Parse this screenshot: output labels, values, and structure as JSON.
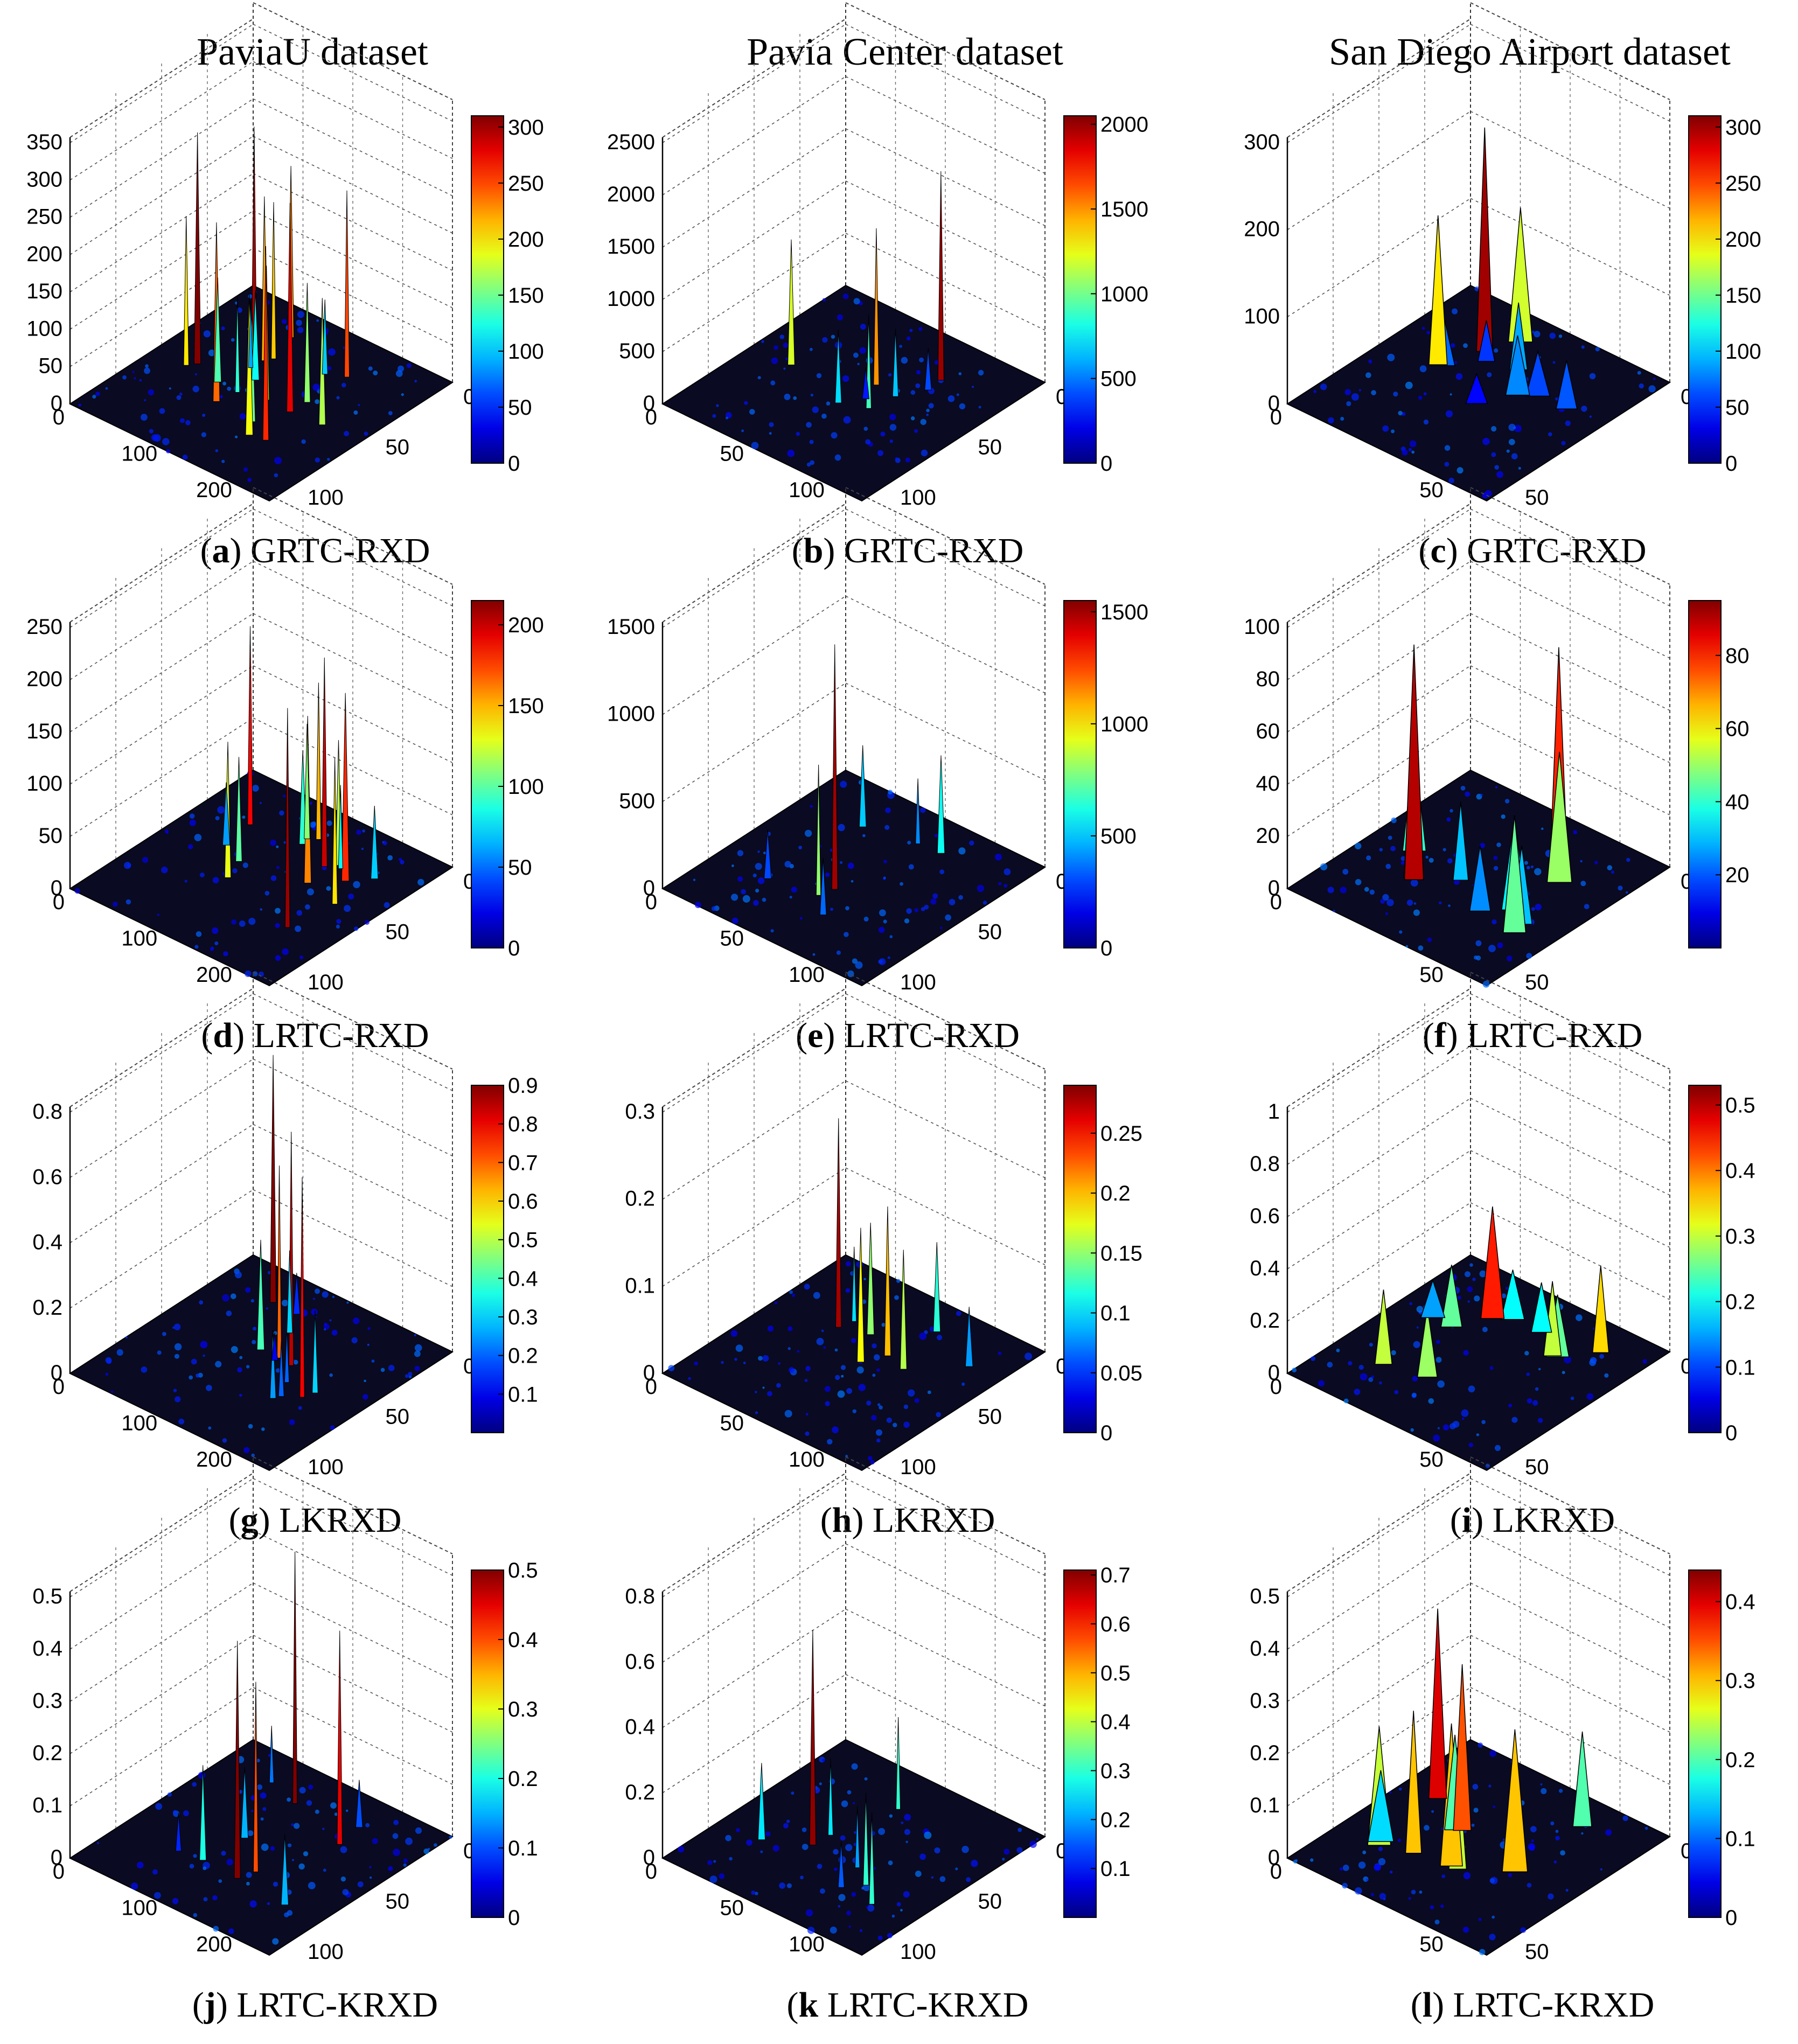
{
  "column_titles": [
    "PaviaU dataset",
    "Pavia Center dataset",
    "San Diego Airport dataset"
  ],
  "colors": {
    "background": "#ffffff",
    "floor": "#0a0a23",
    "grid": "#555555"
  },
  "chart_data": [
    {
      "type": "surface3d",
      "letter": "a",
      "method": "GRTC-RXD",
      "dataset": "PaviaU dataset",
      "z_ticks": [
        "0",
        "50",
        "100",
        "150",
        "200",
        "250",
        "300",
        "350"
      ],
      "x_ticks": [
        "0",
        "100",
        "200"
      ],
      "y_ticks": [
        "0",
        "50",
        "100"
      ],
      "colorbar_ticks": [
        "0",
        "50",
        "100",
        "150",
        "200",
        "250",
        "300"
      ],
      "zmax": 350,
      "cmax": 310,
      "peaks": [
        220,
        300,
        180,
        260,
        240,
        150,
        310,
        200,
        170,
        230,
        120,
        280,
        190,
        250,
        140,
        100,
        210,
        160,
        90,
        130
      ]
    },
    {
      "type": "surface3d",
      "letter": "b",
      "method": "GRTC-RXD",
      "dataset": "Pavia Center dataset",
      "z_ticks": [
        "0",
        "500",
        "1000",
        "1500",
        "2000",
        "2500"
      ],
      "x_ticks": [
        "0",
        "50",
        "100"
      ],
      "y_ticks": [
        "0",
        "50",
        "100"
      ],
      "colorbar_ticks": [
        "0",
        "500",
        "1000",
        "1500",
        "2000"
      ],
      "zmax": 2500,
      "cmax": 2050,
      "peaks": [
        400,
        2000,
        1500,
        700,
        1200,
        900,
        650,
        300
      ]
    },
    {
      "type": "surface3d",
      "letter": "c",
      "method": "GRTC-RXD",
      "dataset": "San Diego Airport dataset",
      "z_ticks": [
        "0",
        "100",
        "200",
        "300"
      ],
      "x_ticks": [
        "0",
        "50"
      ],
      "y_ticks": [
        "0",
        "50"
      ],
      "colorbar_ticks": [
        "0",
        "50",
        "100",
        "150",
        "200",
        "250",
        "300"
      ],
      "zmax": 350,
      "cmax": 310,
      "peaks": [
        300,
        180,
        90,
        70,
        60,
        80,
        55,
        200,
        40,
        65
      ]
    },
    {
      "type": "surface3d",
      "letter": "d",
      "method": "LRTC-RXD",
      "dataset": "PaviaU dataset",
      "z_ticks": [
        "0",
        "50",
        "100",
        "150",
        "200",
        "250"
      ],
      "x_ticks": [
        "0",
        "100",
        "200"
      ],
      "y_ticks": [
        "0",
        "50",
        "100"
      ],
      "colorbar_ticks": [
        "0",
        "50",
        "100",
        "150",
        "200"
      ],
      "zmax": 250,
      "cmax": 215,
      "peaks": [
        120,
        210,
        150,
        180,
        90,
        200,
        70,
        160,
        130,
        100,
        140,
        80,
        190,
        110,
        60
      ]
    },
    {
      "type": "surface3d",
      "letter": "e",
      "method": "LRTC-RXD",
      "dataset": "Pavia Center dataset",
      "z_ticks": [
        "0",
        "500",
        "1000",
        "1500"
      ],
      "x_ticks": [
        "0",
        "50",
        "100"
      ],
      "y_ticks": [
        "0",
        "50",
        "100"
      ],
      "colorbar_ticks": [
        "0",
        "500",
        "1000",
        "1500"
      ],
      "zmax": 1600,
      "cmax": 1550,
      "peaks": [
        500,
        1500,
        800,
        400,
        300,
        600,
        350
      ]
    },
    {
      "type": "surface3d",
      "letter": "f",
      "method": "LRTC-RXD",
      "dataset": "San Diego Airport dataset",
      "z_ticks": [
        "0",
        "20",
        "40",
        "60",
        "80",
        "100"
      ],
      "x_ticks": [
        "0",
        "50"
      ],
      "y_ticks": [
        "0",
        "50"
      ],
      "colorbar_ticks": [
        "20",
        "40",
        "60",
        "80"
      ],
      "zmax": 100,
      "cmax": 95,
      "peaks": [
        80,
        40,
        30,
        60,
        35,
        25,
        90,
        50,
        30,
        45
      ]
    },
    {
      "type": "surface3d",
      "letter": "g",
      "method": "LKRXD",
      "dataset": "PaviaU dataset",
      "z_ticks": [
        "0",
        "0.2",
        "0.4",
        "0.6",
        "0.8"
      ],
      "x_ticks": [
        "0",
        "100",
        "200"
      ],
      "y_ticks": [
        "0",
        "50",
        "100"
      ],
      "colorbar_ticks": [
        "0.1",
        "0.2",
        "0.3",
        "0.4",
        "0.5",
        "0.6",
        "0.7",
        "0.8",
        "0.9"
      ],
      "zmax": 0.95,
      "cmax": 0.9,
      "peaks": [
        0.9,
        0.85,
        0.4,
        0.3,
        0.7,
        0.2,
        0.8,
        0.3,
        0.25,
        0.15,
        0.1,
        0.2
      ]
    },
    {
      "type": "surface3d",
      "letter": "h",
      "method": "LKRXD",
      "dataset": "Pavia Center dataset",
      "z_ticks": [
        "0",
        "0.1",
        "0.2",
        "0.3"
      ],
      "x_ticks": [
        "0",
        "50",
        "100"
      ],
      "y_ticks": [
        "0",
        "50",
        "100"
      ],
      "colorbar_ticks": [
        "0",
        "0.05",
        "0.1",
        "0.15",
        "0.2",
        "0.25"
      ],
      "zmax": 0.35,
      "cmax": 0.29,
      "peaks": [
        0.12,
        0.28,
        0.15,
        0.2,
        0.1,
        0.16,
        0.18,
        0.08
      ]
    },
    {
      "type": "surface3d",
      "letter": "i",
      "method": "LKRXD",
      "dataset": "San Diego Airport dataset",
      "z_ticks": [
        "0",
        "0.2",
        "0.4",
        "0.6",
        "0.8",
        "1"
      ],
      "x_ticks": [
        "0",
        "50"
      ],
      "y_ticks": [
        "0",
        "50"
      ],
      "colorbar_ticks": [
        "0",
        "0.1",
        "0.2",
        "0.3",
        "0.4",
        "0.5"
      ],
      "zmax": 1.05,
      "cmax": 0.53,
      "peaks": [
        0.3,
        0.25,
        0.2,
        0.45,
        0.35,
        0.3,
        0.25,
        0.2,
        0.28,
        0.15
      ]
    },
    {
      "type": "surface3d",
      "letter": "j",
      "method": "LRTC-KRXD",
      "dataset": "PaviaU dataset",
      "z_ticks": [
        "0",
        "0.1",
        "0.2",
        "0.3",
        "0.4",
        "0.5"
      ],
      "x_ticks": [
        "0",
        "100",
        "200"
      ],
      "y_ticks": [
        "0",
        "50",
        "100"
      ],
      "colorbar_ticks": [
        "0",
        "0.1",
        "0.2",
        "0.3",
        "0.4",
        "0.5"
      ],
      "zmax": 0.55,
      "cmax": 0.5,
      "peaks": [
        0.5,
        0.53,
        0.2,
        0.15,
        0.4,
        0.1,
        0.45,
        0.12,
        0.08,
        0.15
      ]
    },
    {
      "type": "surface3d",
      "letter": "k",
      "method": "LRTC-KRXD",
      "dataset": "Pavia Center dataset",
      "z_ticks": [
        "0",
        "0.2",
        "0.4",
        "0.6",
        "0.8"
      ],
      "x_ticks": [
        "0",
        "50",
        "100"
      ],
      "y_ticks": [
        "0",
        "50",
        "100"
      ],
      "colorbar_ticks": [
        "0.1",
        "0.2",
        "0.3",
        "0.4",
        "0.5",
        "0.6",
        "0.7"
      ],
      "zmax": 0.85,
      "cmax": 0.71,
      "peaks": [
        0.25,
        0.3,
        0.7,
        0.2,
        0.25,
        0.3,
        0.3,
        0.15
      ]
    },
    {
      "type": "surface3d",
      "letter": "l",
      "method": "LRTC-KRXD",
      "dataset": "San Diego Airport dataset",
      "z_ticks": [
        "0",
        "0.1",
        "0.2",
        "0.3",
        "0.4",
        "0.5"
      ],
      "x_ticks": [
        "0",
        "50"
      ],
      "y_ticks": [
        "0",
        "50"
      ],
      "colorbar_ticks": [
        "0",
        "0.1",
        "0.2",
        "0.3",
        "0.4"
      ],
      "zmax": 0.55,
      "cmax": 0.44,
      "peaks": [
        0.25,
        0.3,
        0.2,
        0.35,
        0.4,
        0.3,
        0.25,
        0.3,
        0.2,
        0.15
      ]
    }
  ]
}
